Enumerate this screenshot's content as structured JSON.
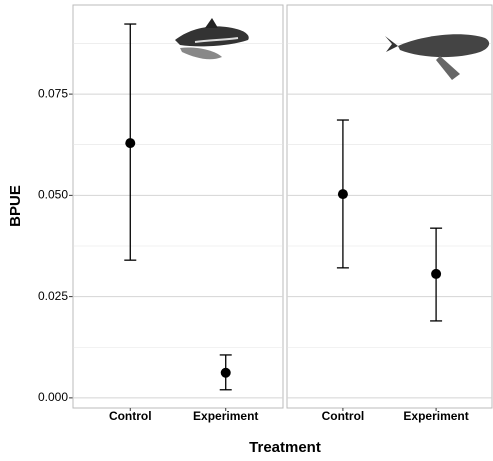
{
  "chart_data": {
    "type": "errorbar",
    "x_label": "Treatment",
    "y_label": "BPUE",
    "ylim": [
      -0.0025,
      0.097
    ],
    "yticks": [
      {
        "value": 0,
        "label": "0.000"
      },
      {
        "value": 0.025,
        "label": "0.025"
      },
      {
        "value": 0.05,
        "label": "0.050"
      },
      {
        "value": 0.075,
        "label": "0.075"
      }
    ],
    "minor_yticks": [
      0.0125,
      0.0375,
      0.0625,
      0.0875
    ],
    "grid": true,
    "color": "#000000",
    "panels": [
      {
        "categories": [
          "Control",
          "Experiment"
        ],
        "values": [
          0.0629,
          0.0062
        ],
        "lower": [
          0.034,
          0.002
        ],
        "upper": [
          0.0923,
          0.0106
        ]
      },
      {
        "categories": [
          "Control",
          "Experiment"
        ],
        "values": [
          0.0503,
          0.0306
        ],
        "lower": [
          0.0321,
          0.019
        ],
        "upper": [
          0.0686,
          0.0419
        ]
      }
    ]
  }
}
